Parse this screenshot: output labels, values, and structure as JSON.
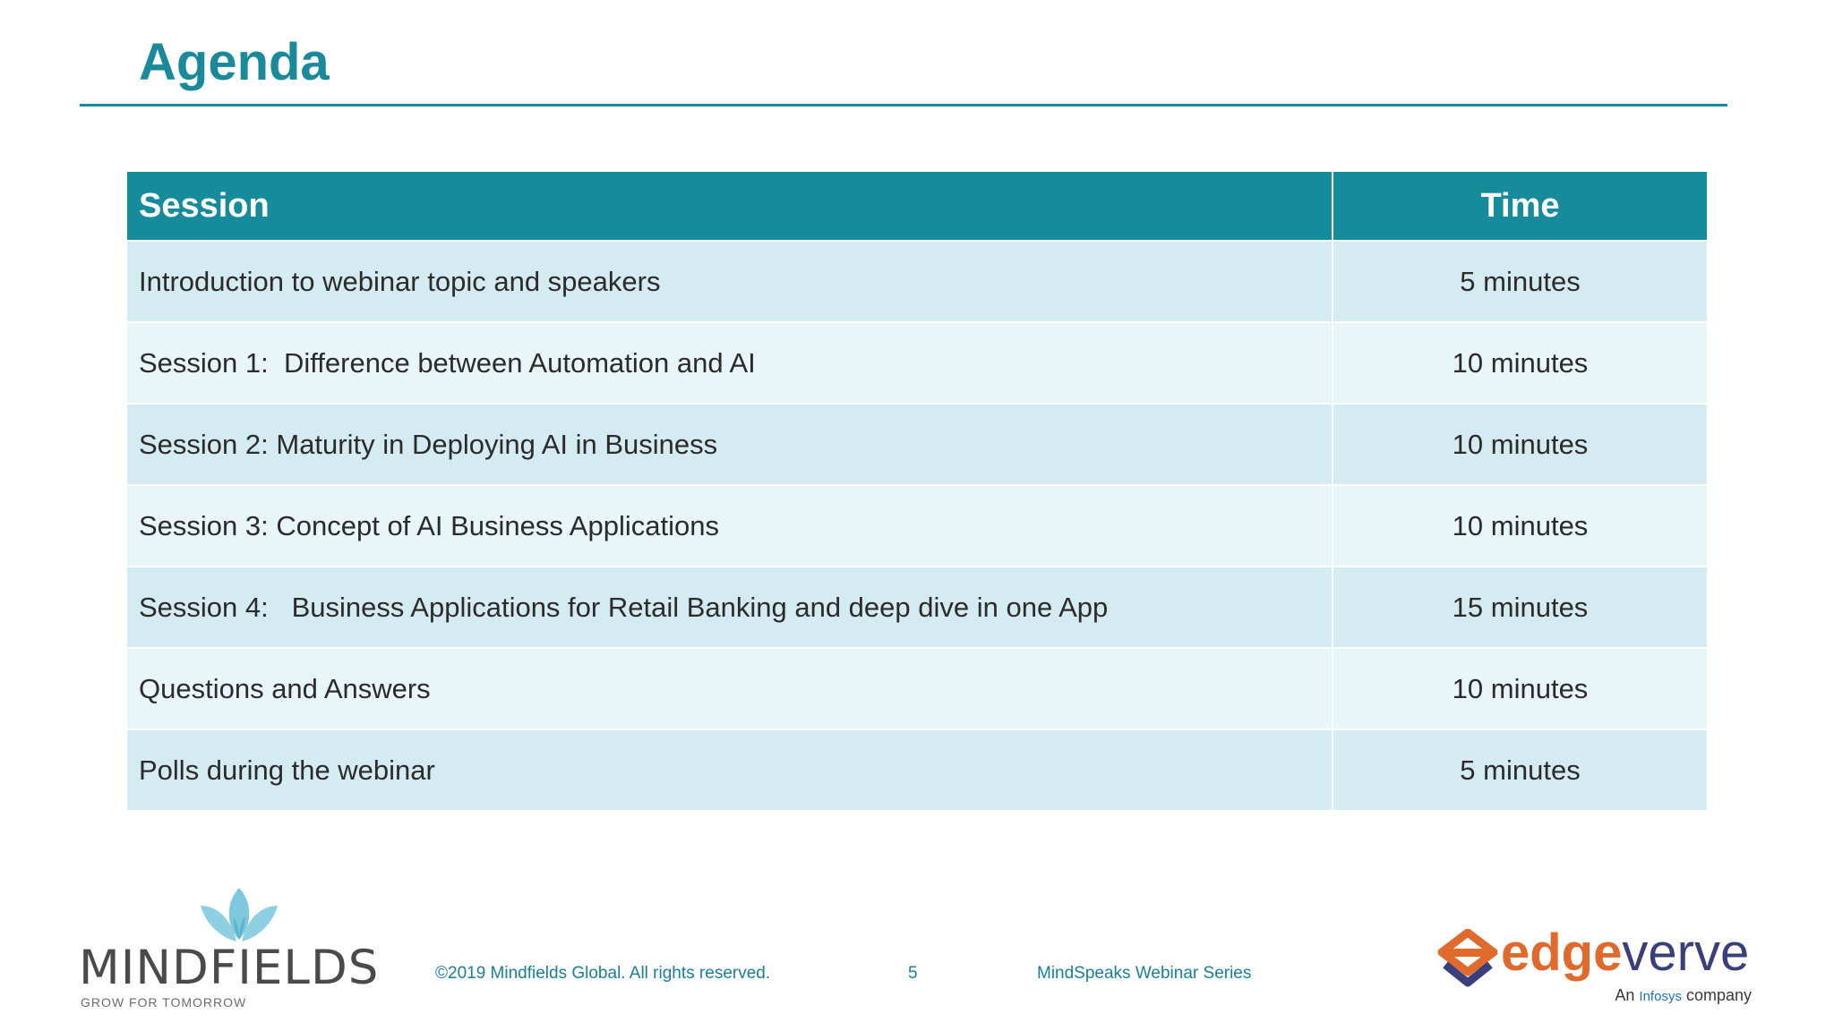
{
  "slide": {
    "title": "Agenda"
  },
  "table": {
    "headers": {
      "session": "Session",
      "time": "Time"
    },
    "rows": [
      {
        "session": "Introduction to webinar topic and speakers",
        "time": "5 minutes"
      },
      {
        "session": "Session 1:  Difference between Automation and AI",
        "time": "10 minutes"
      },
      {
        "session": "Session 2: Maturity in Deploying AI in Business",
        "time": "10 minutes"
      },
      {
        "session": "Session 3: Concept of AI Business Applications",
        "time": "10 minutes"
      },
      {
        "session": "Session 4:   Business Applications for Retail Banking and deep dive in one App",
        "time": "15 minutes"
      },
      {
        "session": "Questions and Answers",
        "time": "10 minutes"
      },
      {
        "session": "Polls during the webinar",
        "time": "5 minutes"
      }
    ]
  },
  "footer": {
    "mindfields_name": "MINDFIELDS",
    "mindfields_tagline": "GROW FOR TOMORROW",
    "copyright": "©2019 Mindfields Global. All rights reserved.",
    "page_number": "5",
    "series": "MindSpeaks Webinar Series",
    "edgeverve_edge": "edge",
    "edgeverve_verve": "verve",
    "edgeverve_sub_prefix": "An ",
    "edgeverve_sub_infosys": "Infosys",
    "edgeverve_sub_suffix": " company"
  },
  "colors": {
    "accent": "#1a8a9a",
    "header_bg": "#168b9b",
    "row_dark": "#d4ebf1",
    "row_light": "#e8f5f9",
    "footer_text": "#1a7f95",
    "edge_orange": "#e06a2c",
    "verve_navy": "#3a3f7c"
  },
  "icons": {
    "mindfields_logo": "lotus-icon",
    "edgeverve_logo": "edgeverve-icon"
  }
}
